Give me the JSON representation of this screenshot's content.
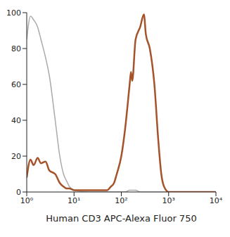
{
  "chart_data": {
    "type": "line",
    "x_label": "Human CD3  APC-Alexa Fluor 750",
    "log": "x",
    "xlim": [
      1,
      10000
    ],
    "xticks": [
      {
        "value": 1,
        "label": "10⁰"
      },
      {
        "value": 10,
        "label": "10¹"
      },
      {
        "value": 100,
        "label": "10²"
      },
      {
        "value": 1000,
        "label": "10³"
      },
      {
        "value": 10000,
        "label": "10⁴"
      }
    ],
    "ylim": [
      0,
      100
    ],
    "yticks": [
      0,
      20,
      40,
      60,
      80,
      100
    ],
    "grid": false,
    "x": [
      1,
      1.2,
      1.4,
      1.7,
      2,
      2.5,
      3,
      4,
      5,
      6,
      7,
      8,
      10,
      20,
      50,
      60,
      70,
      80,
      100,
      120,
      150,
      160,
      170,
      200,
      250,
      300,
      330,
      400,
      500,
      600,
      700,
      800,
      1000,
      10000
    ],
    "series": [
      {
        "color": "#aaaaaa",
        "values": [
          85,
          98,
          96,
          92,
          85,
          75,
          65,
          40,
          20,
          10,
          6,
          3,
          1,
          0,
          0,
          0,
          0,
          0,
          0,
          0,
          1,
          1,
          1,
          1,
          0,
          0,
          0,
          0,
          0,
          0,
          0,
          0,
          0,
          0
        ]
      },
      {
        "color": "#a5532a",
        "values": [
          8,
          18,
          15,
          19,
          16,
          17,
          12,
          10,
          5,
          3,
          2,
          2,
          1,
          1,
          1,
          3,
          5,
          10,
          20,
          35,
          60,
          67,
          62,
          85,
          92,
          99,
          88,
          80,
          60,
          30,
          10,
          3,
          0,
          0
        ]
      }
    ]
  }
}
